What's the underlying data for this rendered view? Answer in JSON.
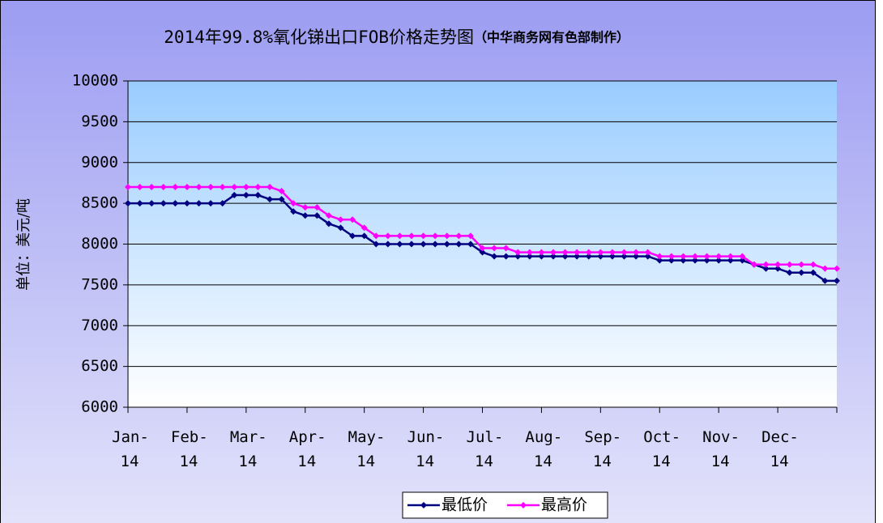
{
  "chart_data": {
    "type": "line",
    "title": "2014年99.8%氧化锑出口FOB价格走势图",
    "subtitle": "（中华商务网有色部制作）",
    "y_label": "单位：美元/吨",
    "xlim": [
      0,
      60
    ],
    "xticks": [
      {
        "value": 0,
        "label": "Jan-14"
      },
      {
        "value": 5,
        "label": "Feb-14"
      },
      {
        "value": 10,
        "label": "Mar-14"
      },
      {
        "value": 15,
        "label": "Apr-14"
      },
      {
        "value": 20,
        "label": "May-14"
      },
      {
        "value": 25,
        "label": "Jun-14"
      },
      {
        "value": 30,
        "label": "Jul-14"
      },
      {
        "value": 35,
        "label": "Aug-14"
      },
      {
        "value": 40,
        "label": "Sep-14"
      },
      {
        "value": 45,
        "label": "Oct-14"
      },
      {
        "value": 50,
        "label": "Nov-14"
      },
      {
        "value": 55,
        "label": "Dec-14"
      }
    ],
    "x": [
      0,
      1,
      2,
      3,
      4,
      5,
      6,
      7,
      8,
      9,
      10,
      11,
      12,
      13,
      14,
      15,
      16,
      17,
      18,
      19,
      20,
      21,
      22,
      23,
      24,
      25,
      26,
      27,
      28,
      29,
      30,
      31,
      32,
      33,
      34,
      35,
      36,
      37,
      38,
      39,
      40,
      41,
      42,
      43,
      44,
      45,
      46,
      47,
      48,
      49,
      50,
      51,
      52,
      53,
      54,
      55,
      56,
      57,
      58,
      59,
      60
    ],
    "ylim": [
      6000,
      10000
    ],
    "yticks": [
      6000,
      6500,
      7000,
      7500,
      8000,
      8500,
      9000,
      9500,
      10000
    ],
    "grid": true,
    "legend": "bottom",
    "series": [
      {
        "name": "最低价",
        "color": "#000080",
        "values": [
          8500,
          8500,
          8500,
          8500,
          8500,
          8500,
          8500,
          8500,
          8500,
          8600,
          8600,
          8600,
          8550,
          8550,
          8400,
          8350,
          8350,
          8250,
          8200,
          8100,
          8100,
          8000,
          8000,
          8000,
          8000,
          8000,
          8000,
          8000,
          8000,
          8000,
          7900,
          7850,
          7850,
          7850,
          7850,
          7850,
          7850,
          7850,
          7850,
          7850,
          7850,
          7850,
          7850,
          7850,
          7850,
          7800,
          7800,
          7800,
          7800,
          7800,
          7800,
          7800,
          7800,
          7750,
          7700,
          7700,
          7650,
          7650,
          7650,
          7550,
          7550
        ]
      },
      {
        "name": "最高价",
        "color": "#ff00ff",
        "values": [
          8700,
          8700,
          8700,
          8700,
          8700,
          8700,
          8700,
          8700,
          8700,
          8700,
          8700,
          8700,
          8700,
          8650,
          8500,
          8450,
          8450,
          8350,
          8300,
          8300,
          8200,
          8100,
          8100,
          8100,
          8100,
          8100,
          8100,
          8100,
          8100,
          8100,
          7950,
          7950,
          7950,
          7900,
          7900,
          7900,
          7900,
          7900,
          7900,
          7900,
          7900,
          7900,
          7900,
          7900,
          7900,
          7850,
          7850,
          7850,
          7850,
          7850,
          7850,
          7850,
          7850,
          7750,
          7750,
          7750,
          7750,
          7750,
          7750,
          7700,
          7700
        ]
      }
    ]
  }
}
